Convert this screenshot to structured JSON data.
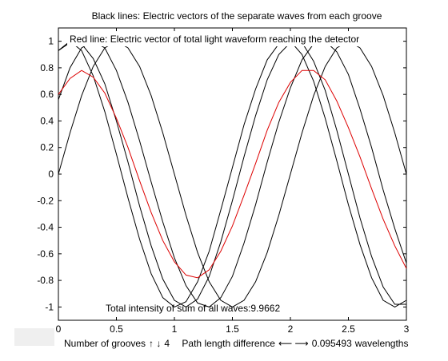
{
  "chart_data": {
    "type": "line",
    "title": "Black lines: Electric vectors of the separate waves from each groove",
    "annotation_top": "Red line: Electric vector of total light waveform reaching the detector",
    "annotation_bottom": "Total intensity of sum of all waves:9.9662",
    "xlim": [
      0,
      3
    ],
    "ylim": [
      -1.1,
      1.1
    ],
    "xticks": [
      0,
      0.5,
      1,
      1.5,
      2,
      2.5,
      3
    ],
    "xtick_labels": [
      "0",
      "0.5",
      "1",
      "1.5",
      "2",
      "2.5",
      "3"
    ],
    "yticks": [
      1,
      0.8,
      0.6,
      0.4,
      0.2,
      0,
      -0.2,
      -0.4,
      -0.6,
      -0.8,
      -1
    ],
    "ytick_labels": [
      "1",
      "0.8",
      "0.6",
      "0.4",
      "0.2",
      "0",
      "-0.2",
      "-0.4",
      "-0.6",
      "-0.8",
      "-1"
    ],
    "grid": false,
    "wave_period": 2,
    "path_length_difference": 0.095493,
    "groove_count": 4,
    "series": [
      {
        "color": "#000000",
        "x": [
          0,
          0.1,
          0.2,
          0.3,
          0.4,
          0.5,
          0.6,
          0.7,
          0.8,
          0.9,
          1,
          1.1,
          1.2,
          1.3,
          1.4,
          1.5,
          1.6,
          1.7,
          1.8,
          1.9,
          2,
          2.1,
          2.2,
          2.3,
          2.4,
          2.5,
          2.6,
          2.7,
          2.8,
          2.9,
          3
        ],
        "y": [
          0,
          0.31,
          0.59,
          0.81,
          0.95,
          1,
          0.95,
          0.81,
          0.59,
          0.31,
          0,
          -0.31,
          -0.59,
          -0.81,
          -0.95,
          -1,
          -0.95,
          -0.81,
          -0.59,
          -0.31,
          0,
          0.31,
          0.59,
          0.81,
          0.95,
          1,
          0.95,
          0.81,
          0.59,
          0.31,
          0
        ]
      },
      {
        "color": "#000000",
        "x": [
          0,
          0.1,
          0.2,
          0.3,
          0.4,
          0.5,
          0.6,
          0.7,
          0.8,
          0.9,
          1,
          1.1,
          1.2,
          1.3,
          1.4,
          1.5,
          1.6,
          1.7,
          1.8,
          1.9,
          2,
          2.1,
          2.2,
          2.3,
          2.4,
          2.5,
          2.6,
          2.7,
          2.8,
          2.9,
          3
        ],
        "y": [
          0.56,
          0.8,
          0.95,
          1,
          0.95,
          0.78,
          0.54,
          0.25,
          -0.06,
          -0.36,
          -0.63,
          -0.84,
          -0.97,
          -1,
          -0.93,
          -0.77,
          -0.52,
          -0.23,
          0.09,
          0.39,
          0.65,
          0.86,
          0.98,
          1,
          0.92,
          0.75,
          0.49,
          0.2,
          -0.12,
          -0.41,
          -0.67
        ]
      },
      {
        "color": "#000000",
        "x": [
          0,
          0.1,
          0.2,
          0.3,
          0.4,
          0.5,
          0.6,
          0.7,
          0.8,
          0.9,
          1,
          1.1,
          1.2,
          1.3,
          1.4,
          1.5,
          1.6,
          1.7,
          1.8,
          1.9,
          2,
          2.1,
          2.2,
          2.3,
          2.4,
          2.5,
          2.6,
          2.7,
          2.8,
          2.9,
          3
        ],
        "y": [
          0.93,
          1,
          0.93,
          0.74,
          0.47,
          0.15,
          -0.18,
          -0.49,
          -0.75,
          -0.93,
          -1,
          -0.96,
          -0.81,
          -0.58,
          -0.27,
          0.05,
          0.37,
          0.64,
          0.86,
          0.98,
          1,
          0.9,
          0.7,
          0.42,
          0.1,
          -0.23,
          -0.53,
          -0.78,
          -0.95,
          -1,
          -0.95
        ]
      },
      {
        "color": "#000000",
        "x": [
          0,
          0.1,
          0.2,
          0.3,
          0.4,
          0.5,
          0.6,
          0.7,
          0.8,
          0.9,
          1,
          1.1,
          1.2,
          1.3,
          1.4,
          1.5,
          1.6,
          1.7,
          1.8,
          1.9,
          2,
          2.1,
          2.2,
          2.3,
          2.4,
          2.5,
          2.6,
          2.7,
          2.8,
          2.9,
          3
        ],
        "y": [
          0.93,
          0.99,
          0.98,
          0.87,
          0.68,
          0.4,
          0.09,
          -0.24,
          -0.54,
          -0.79,
          -0.95,
          -1,
          -0.94,
          -0.77,
          -0.51,
          -0.2,
          0.13,
          0.44,
          0.71,
          0.9,
          0.99,
          0.99,
          0.85,
          0.63,
          0.33,
          0,
          -0.33,
          -0.62,
          -0.85,
          -0.98,
          -0.98
        ]
      },
      {
        "color": "#dd0000",
        "x": [
          0,
          0.1,
          0.2,
          0.3,
          0.4,
          0.5,
          0.6,
          0.7,
          0.8,
          0.9,
          1,
          1.1,
          1.2,
          1.3,
          1.4,
          1.5,
          1.6,
          1.7,
          1.8,
          1.9,
          2,
          2.1,
          2.2,
          2.3,
          2.4,
          2.5,
          2.6,
          2.7,
          2.8,
          2.9,
          3
        ],
        "y": [
          0.6,
          0.72,
          0.78,
          0.73,
          0.61,
          0.42,
          0.2,
          -0.05,
          -0.29,
          -0.5,
          -0.66,
          -0.76,
          -0.78,
          -0.72,
          -0.58,
          -0.39,
          -0.16,
          0.08,
          0.33,
          0.54,
          0.69,
          0.78,
          0.78,
          0.71,
          0.55,
          0.35,
          0.13,
          -0.11,
          -0.34,
          -0.54,
          -0.71
        ]
      }
    ]
  },
  "footer": {
    "grooves_label": "Number of grooves",
    "grooves_arrows": "↑ ↓",
    "grooves_value": "4",
    "path_label": "Path length difference",
    "path_arrows": "⟵ ⟶",
    "path_value": "0.095493",
    "path_unit": "wavelengths"
  }
}
